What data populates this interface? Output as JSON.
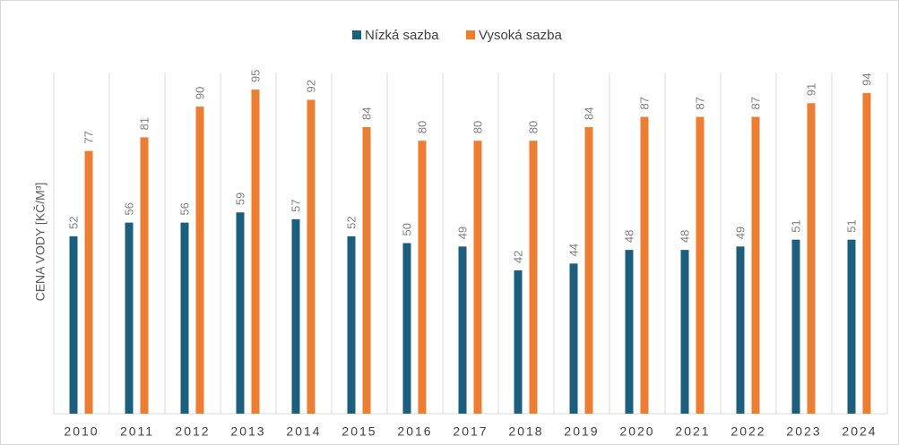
{
  "chart_data": {
    "type": "bar",
    "y_label": "CENA VODY [KČ/M³]",
    "categories": [
      "2010",
      "2011",
      "2012",
      "2013",
      "2014",
      "2015",
      "2016",
      "2017",
      "2018",
      "2019",
      "2020",
      "2021",
      "2022",
      "2023",
      "2024"
    ],
    "series": [
      {
        "name": "Nízká sazba",
        "color": "#1b5e7e",
        "values": [
          52,
          56,
          56,
          59,
          57,
          52,
          50,
          49,
          42,
          44,
          48,
          48,
          49,
          51,
          51
        ]
      },
      {
        "name": "Vysoká sazba",
        "color": "#ed7d31",
        "values": [
          77,
          81,
          90,
          95,
          92,
          84,
          80,
          80,
          80,
          84,
          87,
          87,
          87,
          91,
          94
        ]
      }
    ],
    "ylim": [
      0,
      100
    ],
    "legend": "top"
  }
}
